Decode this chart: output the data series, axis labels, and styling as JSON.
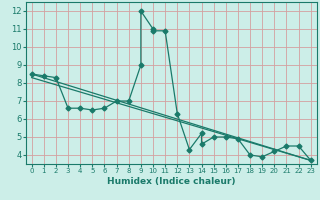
{
  "title": "",
  "xlabel": "Humidex (Indice chaleur)",
  "bg_color": "#cceee8",
  "line_color": "#1a7a6a",
  "grid_color": "#d4a0a0",
  "xlim": [
    -0.5,
    23.5
  ],
  "ylim": [
    3.5,
    12.5
  ],
  "xticks": [
    0,
    1,
    2,
    3,
    4,
    5,
    6,
    7,
    8,
    9,
    10,
    11,
    12,
    13,
    14,
    15,
    16,
    17,
    18,
    19,
    20,
    21,
    22,
    23
  ],
  "yticks": [
    4,
    5,
    6,
    7,
    8,
    9,
    10,
    11,
    12
  ],
  "line1_x": [
    0,
    1,
    2,
    3,
    4,
    5,
    6,
    7,
    8,
    9,
    9,
    10,
    10,
    11,
    12,
    13,
    14,
    14,
    15,
    16,
    17,
    18,
    19,
    20,
    21,
    22,
    23
  ],
  "line1_y": [
    8.5,
    8.4,
    8.3,
    6.6,
    6.6,
    6.5,
    6.6,
    7.0,
    7.0,
    9.0,
    12.0,
    11.0,
    10.9,
    10.9,
    6.3,
    4.3,
    5.2,
    4.6,
    5.0,
    5.0,
    4.9,
    4.0,
    3.9,
    4.2,
    4.5,
    4.5,
    3.7
  ],
  "line2_x": [
    0,
    23
  ],
  "line2_y": [
    8.5,
    3.7
  ],
  "line3_x": [
    0,
    23
  ],
  "line3_y": [
    8.3,
    3.7
  ],
  "marker_size": 2.5,
  "linewidth": 0.9,
  "tick_fontsize_x": 5.0,
  "tick_fontsize_y": 6.0,
  "xlabel_fontsize": 6.5
}
